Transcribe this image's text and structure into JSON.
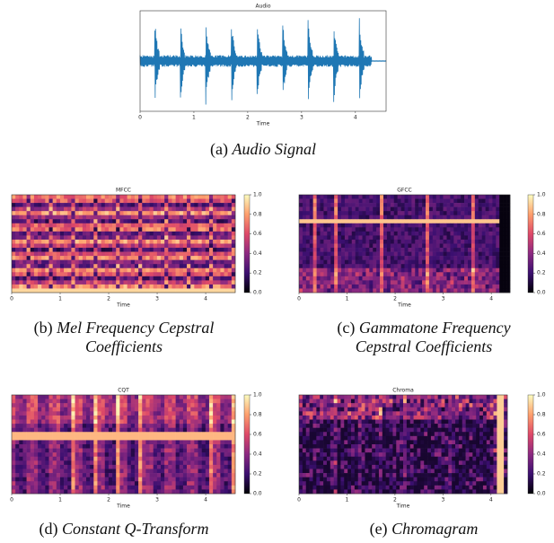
{
  "figure": {
    "panels": [
      {
        "title": "Audio",
        "xlabel": "Time",
        "xlim": [
          0,
          4.57
        ],
        "xticks": [
          0,
          1,
          2,
          3,
          4
        ],
        "caption": {
          "label": "(a)",
          "lines": [
            "Audio Signal"
          ]
        }
      },
      {
        "title": "MFCC",
        "xlabel": "Time",
        "xlim": [
          0,
          4.61
        ],
        "xticks": [
          0,
          1,
          2,
          3,
          4
        ],
        "clim": [
          0,
          1
        ],
        "colorbar_ticks": [
          {
            "value": 0,
            "label": "0.0"
          },
          {
            "value": 0.2,
            "label": "0.2"
          },
          {
            "value": 0.4,
            "label": "0.4"
          },
          {
            "value": 0.6,
            "label": "0.6"
          },
          {
            "value": 0.8,
            "label": "0.8"
          },
          {
            "value": 1,
            "label": "1.0"
          }
        ],
        "caption": {
          "label": "(b)",
          "lines": [
            "Mel Frequency Cepstral",
            "Coefficients"
          ]
        }
      },
      {
        "title": "GFCC",
        "xlabel": "Time",
        "xlim": [
          0,
          4.39
        ],
        "xticks": [
          0,
          1,
          2,
          3,
          4
        ],
        "clim": [
          0,
          1
        ],
        "colorbar_ticks": [
          {
            "value": 0,
            "label": "0.0"
          },
          {
            "value": 0.2,
            "label": "0.2"
          },
          {
            "value": 0.4,
            "label": "0.4"
          },
          {
            "value": 0.6,
            "label": "0.6"
          },
          {
            "value": 0.8,
            "label": "0.8"
          },
          {
            "value": 1,
            "label": "1.0"
          }
        ],
        "caption": {
          "label": "(c)",
          "lines": [
            "Gammatone Frequency",
            "Cepstral Coefficients"
          ]
        }
      },
      {
        "title": "CQT",
        "xlabel": "Time",
        "xlim": [
          0,
          4.61
        ],
        "xticks": [
          0,
          1,
          2,
          3,
          4
        ],
        "clim": [
          0,
          1
        ],
        "colorbar_ticks": [
          {
            "value": 0,
            "label": "0.0"
          },
          {
            "value": 0.2,
            "label": "0.2"
          },
          {
            "value": 0.4,
            "label": "0.4"
          },
          {
            "value": 0.6,
            "label": "0.6"
          },
          {
            "value": 0.8,
            "label": "0.8"
          },
          {
            "value": 1,
            "label": "1.0"
          }
        ],
        "caption": {
          "label": "(d)",
          "lines": [
            "Constant Q-Transform"
          ]
        }
      },
      {
        "title": "Chroma",
        "xlabel": "Time",
        "xlim": [
          0,
          4.34
        ],
        "xticks": [
          0,
          1,
          2,
          3,
          4
        ],
        "clim": [
          0,
          1
        ],
        "colorbar_ticks": [
          {
            "value": 0,
            "label": "0.0"
          },
          {
            "value": 0.2,
            "label": "0.2"
          },
          {
            "value": 0.4,
            "label": "0.4"
          },
          {
            "value": 0.6,
            "label": "0.6"
          },
          {
            "value": 0.8,
            "label": "0.8"
          },
          {
            "value": 1,
            "label": "1.0"
          }
        ],
        "caption": {
          "label": "(e)",
          "lines": [
            "Chromagram"
          ]
        }
      }
    ]
  }
}
